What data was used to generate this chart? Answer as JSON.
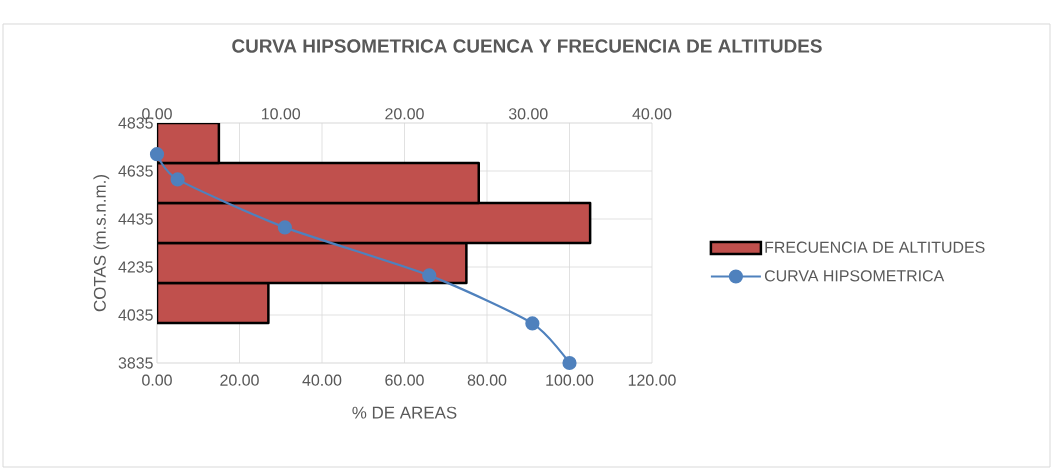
{
  "chart_data": {
    "type": "line",
    "orientation": "horizontal",
    "title": "CURVA HIPSOMETRICA CUENCA Y FRECUENCIA DE ALTITUDES",
    "xlabel": "% DE AREAS",
    "ylabel": "COTAS (m.s.n.m.)",
    "series": [
      {
        "type": "histogram",
        "name": "FRECUENCIA DE ALTITUDES",
        "color": "#c0504d",
        "axis": "x2",
        "bins": [
          4002,
          4168,
          4335,
          4502,
          4668,
          4835
        ],
        "values": [
          9,
          25,
          35,
          26,
          5
        ]
      },
      {
        "name": "CURVA HIPSOMETRICA",
        "color": "#4f81bd",
        "marker": "circle",
        "x": [
          4705,
          4600,
          4400,
          4200,
          4000,
          3835
        ],
        "values": [
          0,
          5,
          31,
          66,
          91,
          100
        ]
      }
    ],
    "xlim": [
      0,
      120
    ],
    "xticks": [
      {
        "value": 0,
        "label": "0.00"
      },
      {
        "value": 20,
        "label": "20.00"
      },
      {
        "value": 40,
        "label": "40.00"
      },
      {
        "value": 60,
        "label": "60.00"
      },
      {
        "value": 80,
        "label": "80.00"
      },
      {
        "value": 100,
        "label": "100.00"
      },
      {
        "value": 120,
        "label": "120.00"
      }
    ],
    "x2lim": [
      0,
      40
    ],
    "x2ticks": [
      {
        "value": 0,
        "label": "0.00"
      },
      {
        "value": 10,
        "label": "10.00"
      },
      {
        "value": 20,
        "label": "20.00"
      },
      {
        "value": 30,
        "label": "30.00"
      },
      {
        "value": 40,
        "label": "40.00"
      }
    ],
    "ylim": [
      3835,
      4835
    ],
    "yticks": [
      3835,
      4035,
      4235,
      4435,
      4635,
      4835
    ],
    "grid": true,
    "legend": "right"
  }
}
